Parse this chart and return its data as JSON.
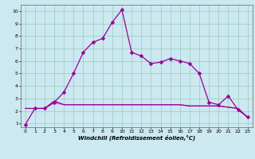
{
  "xlabel": "Windchill (Refroidissement éolien,°C)",
  "background_color": "#cce8f0",
  "grid_color": "#99ccbb",
  "line_color": "#990099",
  "line_color2": "#cc44cc",
  "line_color3": "#ee88ee",
  "xlim": [
    -0.5,
    23.5
  ],
  "ylim": [
    0.7,
    10.5
  ],
  "xticks": [
    0,
    1,
    2,
    3,
    4,
    5,
    6,
    7,
    8,
    9,
    10,
    11,
    12,
    13,
    14,
    15,
    16,
    17,
    18,
    19,
    20,
    21,
    22,
    23
  ],
  "yticks": [
    1,
    2,
    3,
    4,
    5,
    6,
    7,
    8,
    9,
    10
  ],
  "series1_x": [
    0,
    1,
    2,
    3,
    4,
    5,
    6,
    7,
    8,
    9,
    10,
    11,
    12,
    13,
    14,
    15,
    16,
    17,
    18,
    19,
    20,
    21,
    22,
    23
  ],
  "series1_y": [
    0.9,
    2.2,
    2.2,
    2.7,
    3.5,
    5.0,
    6.7,
    7.5,
    7.8,
    9.1,
    10.1,
    6.7,
    6.4,
    5.8,
    5.9,
    6.2,
    6.0,
    5.8,
    5.0,
    2.7,
    2.5,
    3.2,
    2.1,
    1.5
  ],
  "series2_x": [
    0,
    1,
    2,
    3,
    4,
    5,
    6,
    7,
    8,
    9,
    10,
    11,
    12,
    13,
    14,
    15,
    16,
    17,
    18,
    19,
    20,
    21,
    22,
    23
  ],
  "series2_y": [
    2.2,
    2.2,
    2.2,
    2.8,
    2.5,
    2.5,
    2.5,
    2.5,
    2.5,
    2.5,
    2.5,
    2.5,
    2.5,
    2.5,
    2.5,
    2.5,
    2.5,
    2.4,
    2.4,
    2.4,
    2.4,
    2.3,
    2.2,
    1.5
  ],
  "series3_x": [
    0,
    1,
    2,
    3,
    4,
    5,
    6,
    7,
    8,
    9,
    10,
    11,
    12,
    13,
    14,
    15,
    16,
    17,
    18,
    19,
    20,
    21,
    22,
    23
  ],
  "series3_y": [
    2.2,
    2.2,
    2.2,
    2.7,
    2.5,
    2.5,
    2.5,
    2.5,
    2.5,
    2.5,
    2.5,
    2.5,
    2.5,
    2.5,
    2.5,
    2.5,
    2.5,
    2.4,
    2.4,
    2.4,
    2.4,
    2.3,
    2.2,
    1.5
  ],
  "series4_x": [
    0,
    1,
    2,
    3,
    4,
    5,
    6,
    7,
    8,
    9,
    10,
    11,
    12,
    13,
    14,
    15,
    16,
    17,
    18,
    19,
    20,
    21,
    22,
    23
  ],
  "series4_y": [
    2.2,
    2.2,
    2.2,
    2.6,
    2.5,
    2.5,
    2.5,
    2.5,
    2.5,
    2.5,
    2.5,
    2.5,
    2.5,
    2.5,
    2.5,
    2.5,
    2.5,
    2.4,
    2.4,
    2.4,
    2.4,
    2.3,
    2.2,
    1.5
  ],
  "marker_size": 2.5
}
